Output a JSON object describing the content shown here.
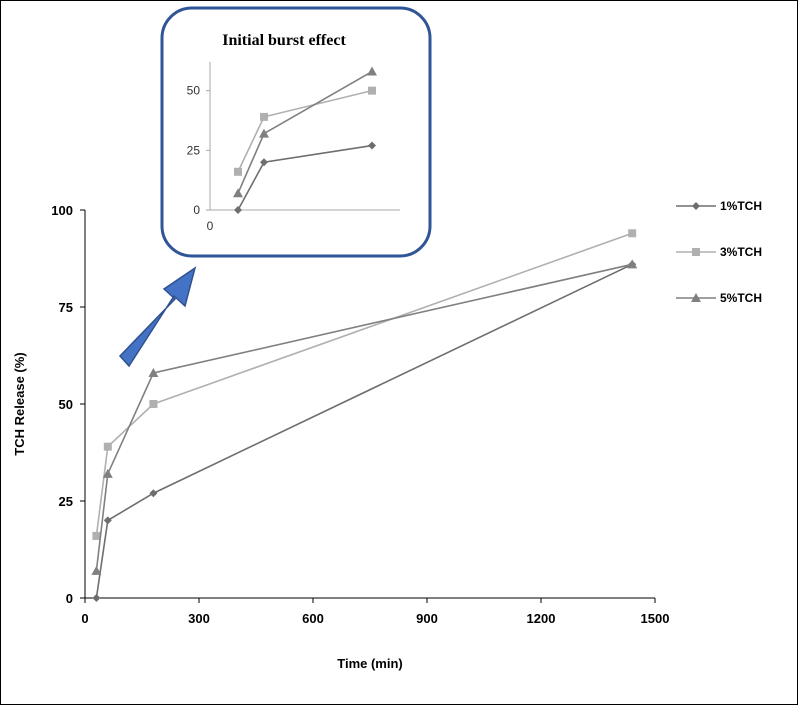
{
  "chart_data": [
    {
      "type": "line",
      "title": "",
      "xlabel": "Time (min)",
      "ylabel": "TCH Release (%)",
      "xlim": [
        0,
        1500
      ],
      "ylim": [
        0,
        100
      ],
      "xticks": [
        "0",
        "300",
        "600",
        "900",
        "1200",
        "1500"
      ],
      "yticks": [
        "0",
        "25",
        "50",
        "75",
        "100"
      ],
      "grid": false,
      "legend": "right",
      "x": [
        30,
        60,
        180,
        1440
      ],
      "series": [
        {
          "name": "1%TCH",
          "marker": "diamond",
          "color": "#6e6e6e",
          "values": [
            0,
            20,
            27,
            86
          ]
        },
        {
          "name": "3%TCH",
          "marker": "square",
          "color": "#b0b0b0",
          "values": [
            16,
            39,
            50,
            94
          ]
        },
        {
          "name": "5%TCH",
          "marker": "triangle",
          "color": "#808080",
          "values": [
            7,
            32,
            58,
            86
          ]
        }
      ]
    },
    {
      "type": "line",
      "title": "Initial burst effect",
      "xticks": [
        "0"
      ],
      "yticks": [
        "0",
        "25",
        "50"
      ],
      "ylim": [
        0,
        62
      ],
      "x": [
        30,
        60,
        180
      ],
      "series": [
        {
          "name": "1%TCH",
          "marker": "diamond",
          "color": "#6e6e6e",
          "values": [
            0,
            20,
            27
          ]
        },
        {
          "name": "3%TCH",
          "marker": "square",
          "color": "#b0b0b0",
          "values": [
            16,
            39,
            50
          ]
        },
        {
          "name": "5%TCH",
          "marker": "triangle",
          "color": "#808080",
          "values": [
            7,
            32,
            58
          ]
        }
      ]
    }
  ],
  "annotation": {
    "arrow_color": "#4472c4",
    "inset_border_color": "#2e5597"
  }
}
